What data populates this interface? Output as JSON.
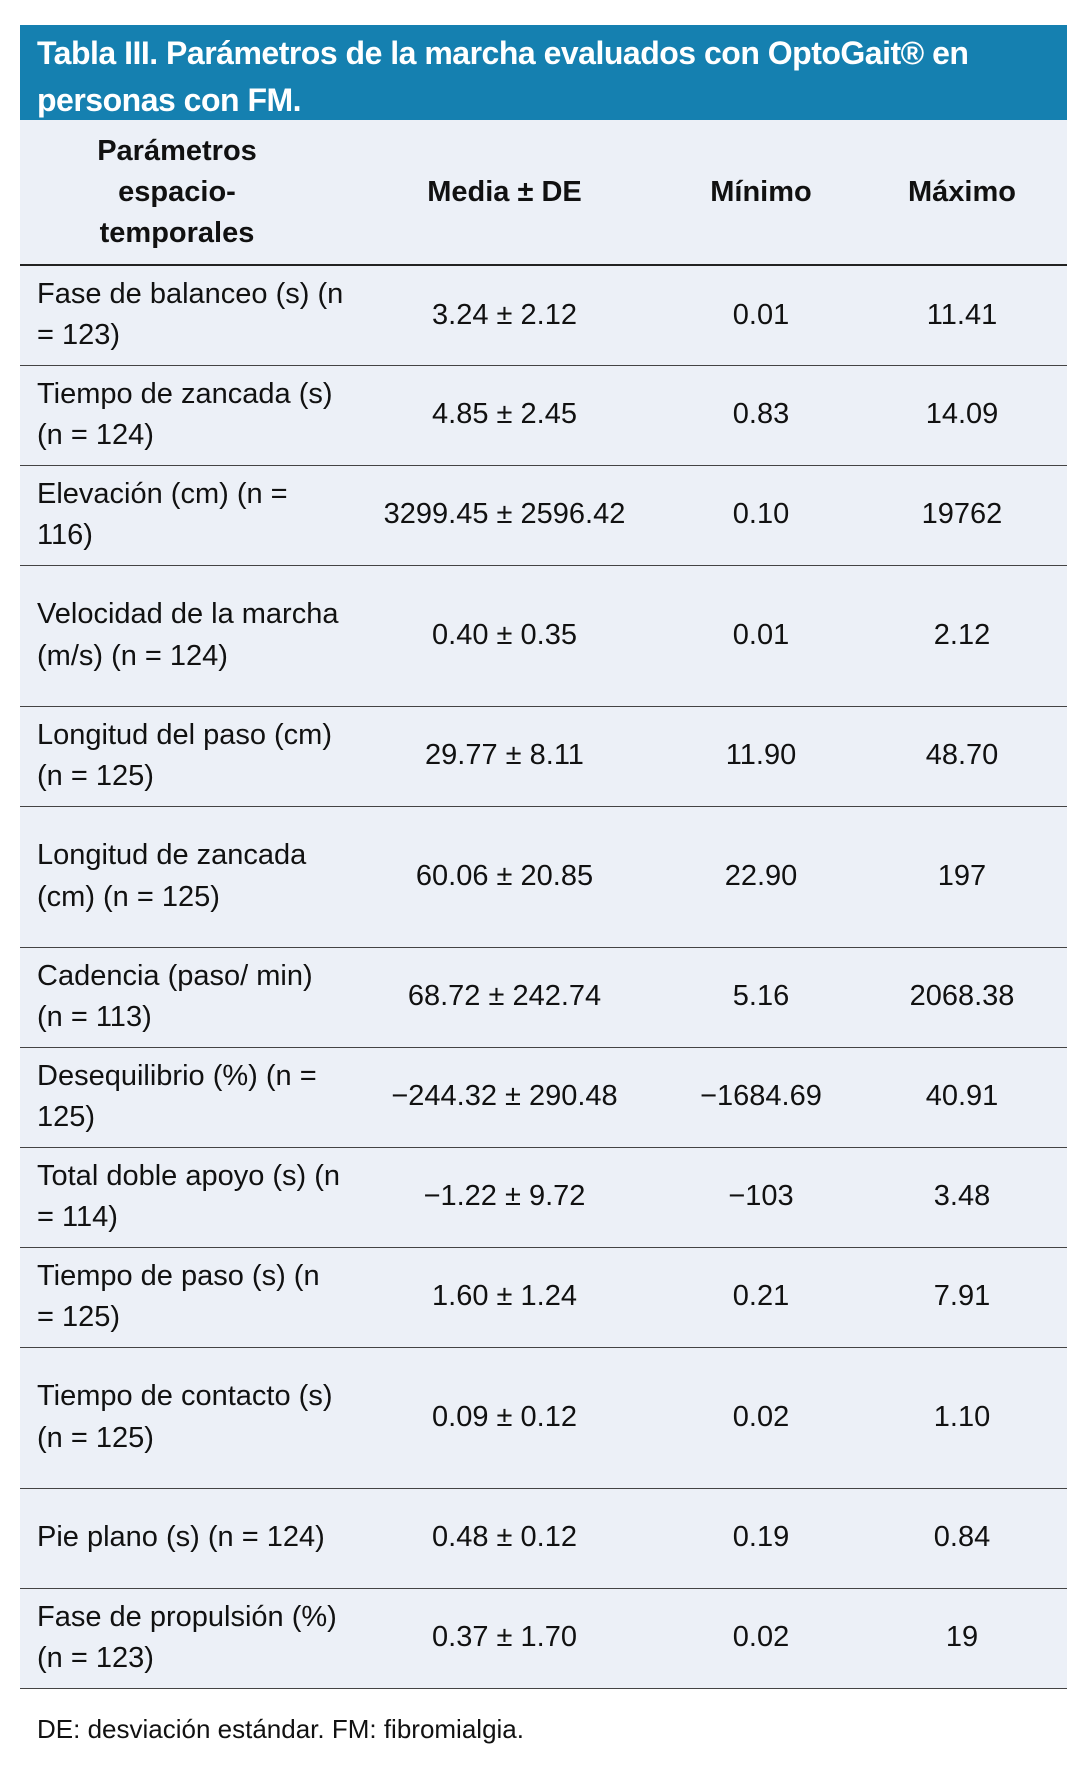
{
  "title": "Tabla III. Parámetros  de la marcha evaluados con OptoGait® en personas con FM.",
  "headers": [
    "Parámetros espacio-temporales",
    "Media ± DE",
    "Mínimo",
    "Máximo"
  ],
  "rows": [
    {
      "param": "Fase de balanceo (s) (n = 123)",
      "mean": "3.24 ± 2.12",
      "min": "0.01",
      "max": "11.41"
    },
    {
      "param": "Tiempo de zancada (s) (n = 124)",
      "mean": "4.85 ± 2.45",
      "min": "0.83",
      "max": "14.09"
    },
    {
      "param": "Elevación (cm) (n = 116)",
      "mean": "3299.45 ± 2596.42",
      "min": "0.10",
      "max": "19762"
    },
    {
      "param": "Velocidad de la marcha (m/s) (n = 124)",
      "mean": "0.40 ± 0.35",
      "min": "0.01",
      "max": "2.12"
    },
    {
      "param": "Longitud del paso (cm) (n = 125)",
      "mean": "29.77 ± 8.11",
      "min": "11.90",
      "max": "48.70"
    },
    {
      "param": "Longitud de zancada (cm) (n = 125)",
      "mean": "60.06 ± 20.85",
      "min": "22.90",
      "max": "197"
    },
    {
      "param": "Cadencia (paso/ min) (n = 113)",
      "mean": "68.72 ± 242.74",
      "min": "5.16",
      "max": "2068.38"
    },
    {
      "param": "Desequilibrio (%) (n = 125)",
      "mean": "−244.32 ± 290.48",
      "min": "−1684.69",
      "max": "40.91"
    },
    {
      "param": "Total doble apoyo (s) (n = 114)",
      "mean": "−1.22 ± 9.72",
      "min": "−103",
      "max": "3.48"
    },
    {
      "param": "Tiempo de paso (s) (n = 125)",
      "mean": "1.60 ± 1.24",
      "min": "0.21",
      "max": "7.91"
    },
    {
      "param": "Tiempo de contacto (s) (n = 125)",
      "mean": "0.09 ± 0.12",
      "min": "0.02",
      "max": "1.10"
    },
    {
      "param": "Pie plano (s) (n = 124)",
      "mean": "0.48 ± 0.12",
      "min": "0.19",
      "max": "0.84"
    },
    {
      "param": "Fase de propulsión (%) (n = 123)",
      "mean": "0.37 ± 1.70",
      "min": "0.02",
      "max": "19"
    }
  ],
  "footnote": "DE: desviación estándar. FM: fibromialgia.",
  "colors": {
    "header_bg": "#1580b0",
    "table_bg": "#ecf0f7"
  }
}
